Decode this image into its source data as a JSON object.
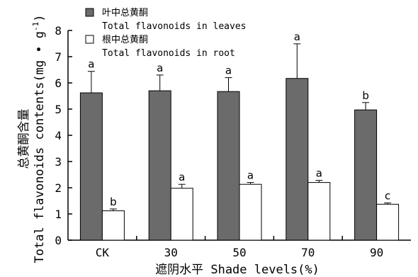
{
  "chart_data": {
    "type": "bar",
    "categories": [
      "CK",
      "30",
      "50",
      "70",
      "90"
    ],
    "series": [
      {
        "name": "叶中总黄酮",
        "name_en": "Total flavonoids in leaves",
        "color": "#6b6b6b",
        "values": [
          5.62,
          5.7,
          5.67,
          6.17,
          4.97
        ],
        "errors": [
          0.82,
          0.6,
          0.53,
          1.32,
          0.28
        ],
        "labels": [
          "a",
          "a",
          "a",
          "a",
          "b"
        ]
      },
      {
        "name": "根中总黄酮",
        "name_en": "Total flavonoids in root",
        "color": "#ffffff",
        "values": [
          1.12,
          1.98,
          2.13,
          2.2,
          1.37
        ],
        "errors": [
          0.07,
          0.15,
          0.07,
          0.08,
          0.05
        ],
        "labels": [
          "b",
          "a",
          "a",
          "a",
          "c"
        ]
      }
    ],
    "ylim": [
      0,
      8
    ],
    "yticks": [
      0,
      1,
      2,
      3,
      4,
      5,
      6,
      7,
      8
    ],
    "xlabel": "遮阴水平 Shade levels(%)",
    "ylabel_cn": "总黄酮含量",
    "ylabel_en": "Total flavonoids contents(mg • g",
    "ylabel_sup": "-1",
    "ylabel_close": ")",
    "legend": "top-left",
    "grid": false
  }
}
